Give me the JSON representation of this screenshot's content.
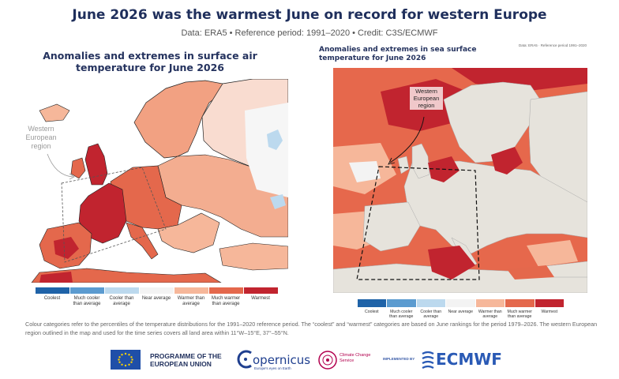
{
  "title": "June 2026 was the warmest June on record for western Europe",
  "subtitle": "Data: ERA5 • Reference period: 1991–2020 • Credit: C3S/ECMWF",
  "left_panel": {
    "title": "Anomalies and extremes in surface air temperature for June 2026",
    "region_label": "Western European region"
  },
  "right_panel": {
    "title": "Anomalies and extremes in sea surface temperature for June 2026",
    "source": "Data: ERA5 · Reference period 1991–2020",
    "region_label": "Western European region"
  },
  "legend": {
    "items": [
      {
        "label": "Coolest",
        "color": "#1f63a8"
      },
      {
        "label": "Much cooler than average",
        "color": "#5b9bd0"
      },
      {
        "label": "Cooler than average",
        "color": "#bcd9ee"
      },
      {
        "label": "Near average",
        "color": "#f3f3f3"
      },
      {
        "label": "Warmer than average",
        "color": "#f6b79a"
      },
      {
        "label": "Much warmer than average",
        "color": "#e4684c"
      },
      {
        "label": "Warmest",
        "color": "#c1242f"
      }
    ]
  },
  "footnote": "Colour categories refer to the percentiles of the temperature distributions for the 1991–2020 reference period. The “coolest” and “warmest” categories are based on June rankings for the period 1979–2026. The western European region outlined in the map and used for the time series covers all land area within 11°W–15°E, 37°–55°N.",
  "logos": {
    "eu": "PROGRAMME OF THE EUROPEAN UNION",
    "copernicus": "opernicus",
    "copernicus_tagline": "Europe's eyes on Earth",
    "c3s": "Climate Change Service",
    "implemented_by": "IMPLEMENTED BY",
    "ecmwf": "ECMWF"
  },
  "colors": {
    "land_grey": "#e6e3dc",
    "sea_white": "#ffffff",
    "title_navy": "#1f2f5c"
  }
}
